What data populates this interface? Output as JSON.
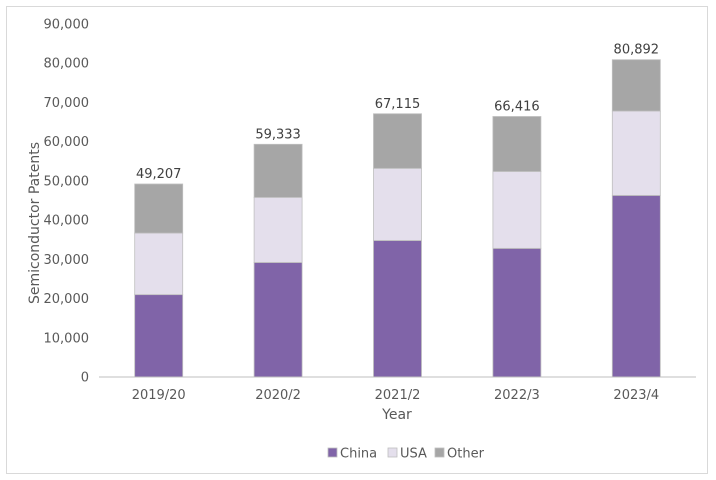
{
  "chart_data": {
    "type": "bar",
    "stacked": true,
    "categories": [
      "2019/20",
      "2020/2",
      "2021/2",
      "2022/3",
      "2023/4"
    ],
    "series": [
      {
        "name": "China",
        "values": [
          21000,
          29200,
          34800,
          32800,
          46300
        ],
        "color": "#8064a8"
      },
      {
        "name": "USA",
        "values": [
          15700,
          16600,
          18400,
          19600,
          21500
        ],
        "color": "#e4dfec"
      },
      {
        "name": "Other",
        "values": [
          12507,
          13533,
          13915,
          14016,
          13092
        ],
        "color": "#a6a6a6"
      }
    ],
    "totals": [
      "49,207",
      "59,333",
      "67,115",
      "66,416",
      "80,892"
    ],
    "yticks": [
      "0",
      "10,000",
      "20,000",
      "30,000",
      "40,000",
      "50,000",
      "60,000",
      "70,000",
      "80,000",
      "90,000"
    ],
    "ylim": [
      0,
      90000
    ],
    "xlabel": "Year",
    "ylabel": "Semiconductor Patents",
    "grid": false,
    "legend_position": "bottom"
  }
}
